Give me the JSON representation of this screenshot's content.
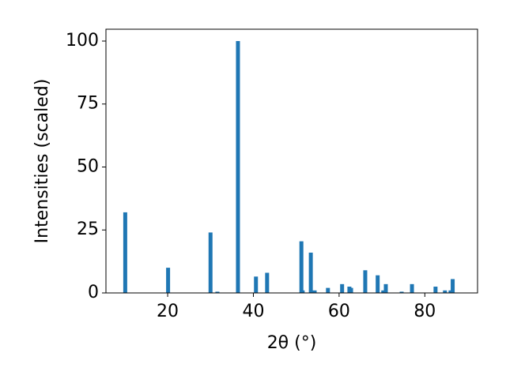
{
  "chart_data": {
    "type": "bar",
    "x_label": "2θ (°)",
    "y_label": "Intensities (scaled)",
    "color": "#1f77b4",
    "x": [
      10.1,
      20.1,
      30.0,
      31.6,
      36.4,
      40.6,
      43.2,
      51.2,
      51.5,
      53.4,
      54.3,
      57.4,
      60.7,
      62.4,
      62.8,
      66.1,
      69.0,
      70.3,
      70.9,
      74.6,
      77.0,
      82.5,
      84.7,
      86.0,
      86.5
    ],
    "values": [
      32,
      10,
      24,
      0.5,
      100,
      6.5,
      8,
      20.5,
      1,
      16,
      1,
      2,
      3.5,
      2.5,
      2,
      9,
      7,
      1,
      3.5,
      0.5,
      3.5,
      2.5,
      1,
      1,
      5.5
    ],
    "xlim": [
      5.6,
      92.3
    ],
    "ylim": [
      0,
      104.7
    ],
    "xticks": [
      20,
      40,
      60,
      80
    ],
    "yticks": [
      0,
      25,
      50,
      75,
      100
    ]
  }
}
